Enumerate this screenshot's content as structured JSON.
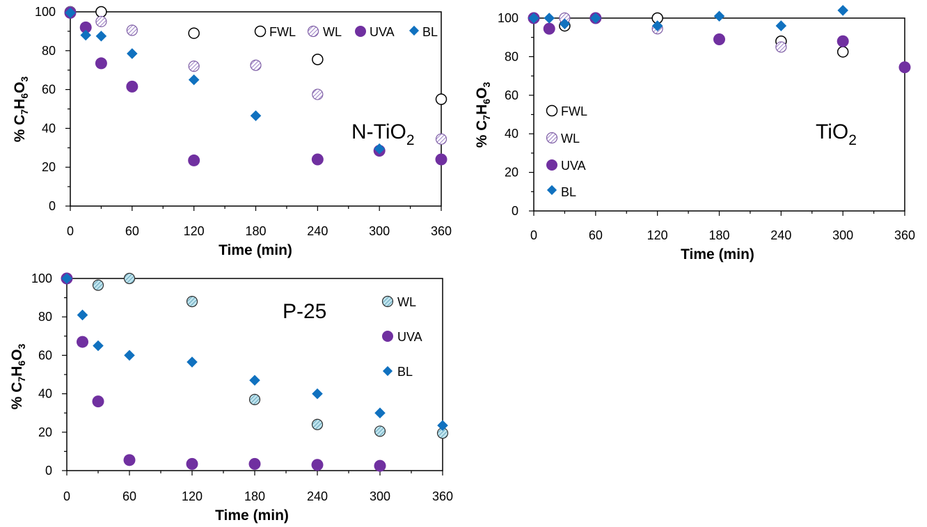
{
  "colors": {
    "uva": "#7030a0",
    "bl": "#1071bf",
    "wl_stroke": "#7f5fa6",
    "wl_fill": "#dcd0ec",
    "wl_p25_stroke": "#303030",
    "wl_p25_fill": "#a8d8e6",
    "fwl_stroke": "#000000"
  },
  "chart_data": [
    {
      "id": "ntio2",
      "type": "scatter",
      "label_main": "N-TiO",
      "label_sub": "2",
      "xlabel": "Time (min)",
      "ylabel_parts": [
        "% C",
        "7",
        "H",
        "6",
        "O",
        "3"
      ],
      "xlim": [
        0,
        360
      ],
      "ylim": [
        0,
        100
      ],
      "xticks": [
        0,
        60,
        120,
        180,
        240,
        300,
        360
      ],
      "yticks": [
        0,
        20,
        40,
        60,
        80,
        100
      ],
      "legend": [
        "FWL",
        "WL",
        "UVA",
        "BL"
      ],
      "series": [
        {
          "name": "FWL",
          "marker": "open-circle",
          "x": [
            0,
            30,
            120,
            240,
            360
          ],
          "y": [
            100,
            100,
            89,
            75.5,
            55
          ]
        },
        {
          "name": "WL",
          "marker": "hatched-circle",
          "x": [
            0,
            30,
            60,
            120,
            180,
            240,
            360
          ],
          "y": [
            100,
            95,
            90.5,
            72,
            72.5,
            57.5,
            34.5
          ]
        },
        {
          "name": "UVA",
          "marker": "filled-circle",
          "x": [
            0,
            15,
            30,
            60,
            120,
            240,
            300,
            360
          ],
          "y": [
            99.5,
            92,
            73.5,
            61.5,
            23.5,
            24,
            28.5,
            24
          ]
        },
        {
          "name": "BL",
          "marker": "diamond",
          "x": [
            0,
            15,
            30,
            60,
            120,
            180,
            300
          ],
          "y": [
            99.5,
            88,
            87.5,
            78.5,
            65,
            46.5,
            29.5
          ]
        }
      ]
    },
    {
      "id": "tio2",
      "type": "scatter",
      "label_main": "TiO",
      "label_sub": "2",
      "xlabel": "Time (min)",
      "ylabel_parts": [
        "% C",
        "7",
        "H",
        "6",
        "O",
        "3"
      ],
      "xlim": [
        0,
        360
      ],
      "ylim": [
        0,
        100
      ],
      "xticks": [
        0,
        60,
        120,
        180,
        240,
        300,
        360
      ],
      "yticks": [
        0,
        20,
        40,
        60,
        80,
        100
      ],
      "legend": [
        "FWL",
        "WL",
        "UVA",
        "BL"
      ],
      "series": [
        {
          "name": "FWL",
          "marker": "open-circle",
          "x": [
            0,
            30,
            60,
            120,
            240,
            300
          ],
          "y": [
            100,
            96,
            100,
            100,
            88,
            82.5
          ]
        },
        {
          "name": "WL",
          "marker": "hatched-circle",
          "x": [
            0,
            30,
            60,
            120,
            240
          ],
          "y": [
            100,
            100,
            100,
            94.5,
            85
          ]
        },
        {
          "name": "UVA",
          "marker": "filled-circle",
          "x": [
            0,
            15,
            60,
            180,
            300,
            360
          ],
          "y": [
            100,
            94.5,
            100,
            89,
            88,
            74.5
          ]
        },
        {
          "name": "BL",
          "marker": "diamond",
          "x": [
            0,
            15,
            30,
            60,
            120,
            180,
            240,
            300
          ],
          "y": [
            100,
            100,
            97,
            100,
            96,
            101,
            96,
            104
          ]
        }
      ]
    },
    {
      "id": "p25",
      "type": "scatter",
      "label_main": "P-25",
      "label_sub": "",
      "xlabel": "Time (min)",
      "ylabel_parts": [
        "% C",
        "7",
        "H",
        "6",
        "O",
        "3"
      ],
      "xlim": [
        0,
        360
      ],
      "ylim": [
        0,
        100
      ],
      "xticks": [
        0,
        60,
        120,
        180,
        240,
        300,
        360
      ],
      "yticks": [
        0,
        20,
        40,
        60,
        80,
        100
      ],
      "legend": [
        "WL",
        "UVA",
        "BL"
      ],
      "series": [
        {
          "name": "WL",
          "marker": "hatched-circle-p25",
          "x": [
            0,
            30,
            60,
            120,
            180,
            240,
            300,
            360
          ],
          "y": [
            100,
            96.5,
            100,
            88,
            37,
            24,
            20.5,
            19.5
          ]
        },
        {
          "name": "UVA",
          "marker": "filled-circle",
          "x": [
            0,
            15,
            30,
            60,
            120,
            180,
            240,
            300
          ],
          "y": [
            100,
            67,
            36,
            5.5,
            3.5,
            3.5,
            3,
            2.5
          ]
        },
        {
          "name": "BL",
          "marker": "diamond",
          "x": [
            0,
            15,
            30,
            60,
            120,
            180,
            240,
            300,
            360
          ],
          "y": [
            100,
            81,
            65,
            60,
            56.5,
            47,
            40,
            30,
            23.5
          ]
        }
      ]
    }
  ]
}
